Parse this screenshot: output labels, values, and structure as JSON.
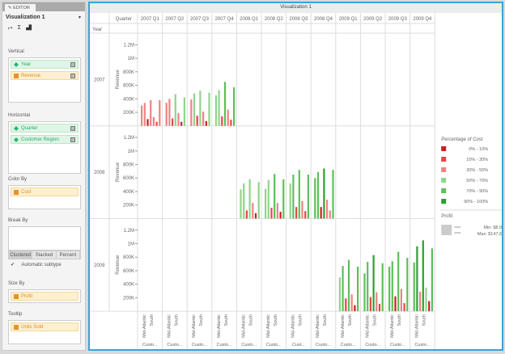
{
  "editor": {
    "tab": "EDITOR",
    "viz_name": "Visualization 1",
    "vertical_label": "Vertical",
    "vertical": [
      "Year",
      "Revenue"
    ],
    "horizontal_label": "Horizontal",
    "horizontal": [
      "Quarter",
      "Customer Region"
    ],
    "colorby_label": "Color By",
    "colorby": "Cost",
    "breakby_label": "Break By",
    "subtypes": [
      "Clustered",
      "Stacked",
      "Percent"
    ],
    "auto_subtype": "Automatic subtype",
    "sizeby_label": "Size By",
    "sizeby": "Profit",
    "tooltip_label": "Tooltip",
    "tooltip": "Units Sold"
  },
  "viz": {
    "title": "Visualization 1",
    "quarter_header": "Quarter",
    "year_header": "Year",
    "ylabel": "Revenue",
    "regions": [
      "Mid-Atlantic",
      "South"
    ],
    "region_group": [
      "Custo...",
      "Custo...",
      "Custo...",
      "Custo...",
      "Custo...",
      "Custo...",
      "Cust...",
      "Custo...",
      "Custo...",
      "Custo...",
      "Custo...",
      "Custo..."
    ]
  },
  "legend": {
    "title": "Percentage of Cost",
    "items": [
      "0% - 10%",
      "10% - 30%",
      "30% - 50%",
      "50% - 70%",
      "70% - 90%",
      "90% - 100%"
    ],
    "colors": [
      "#c8201e",
      "#e84545",
      "#f08282",
      "#8fd68a",
      "#5cbf5a",
      "#2e9e2e"
    ],
    "size_title": "Profit",
    "min": "Min: $8,937",
    "max": "Max: $147,679"
  },
  "chart_data": {
    "type": "bar",
    "ylabel": "Revenue",
    "ylim": [
      0,
      1300000
    ],
    "yticks": [
      "200K",
      "400K",
      "600K",
      "800K",
      "1M",
      "1.2M"
    ],
    "columns": [
      "2007 Q1",
      "2007 Q2",
      "2007 Q3",
      "2007 Q4",
      "2008 Q1",
      "2008 Q2",
      "2008 Q3",
      "2008 Q4",
      "2009 Q1",
      "2009 Q2",
      "2009 Q3",
      "2009 Q4"
    ],
    "rows": [
      "2007",
      "2008",
      "2009"
    ],
    "bars_k": {
      "2007 Q1": [
        [
          300,
          2
        ],
        [
          340,
          2
        ],
        [
          100,
          0
        ],
        [
          380,
          2
        ],
        [
          130,
          2
        ],
        [
          60,
          1
        ],
        [
          380,
          2
        ]
      ],
      "2007 Q2": [
        [
          340,
          2
        ],
        [
          400,
          2
        ],
        [
          110,
          1
        ],
        [
          470,
          3
        ],
        [
          190,
          2
        ],
        [
          60,
          0
        ],
        [
          420,
          3
        ]
      ],
      "2007 Q3": [
        [
          390,
          2
        ],
        [
          480,
          3
        ],
        [
          150,
          1
        ],
        [
          520,
          3
        ],
        [
          210,
          2
        ],
        [
          70,
          0
        ],
        [
          490,
          3
        ]
      ],
      "2007 Q4": [
        [
          450,
          3
        ],
        [
          530,
          3
        ],
        [
          140,
          1
        ],
        [
          650,
          4
        ],
        [
          240,
          2
        ],
        [
          90,
          1
        ],
        [
          570,
          4
        ]
      ],
      "2008 Q1": [
        [
          430,
          3
        ],
        [
          520,
          3
        ],
        [
          120,
          1
        ],
        [
          580,
          3
        ],
        [
          230,
          2
        ],
        [
          80,
          0
        ],
        [
          540,
          3
        ]
      ],
      "2008 Q2": [
        [
          440,
          3
        ],
        [
          570,
          3
        ],
        [
          160,
          1
        ],
        [
          660,
          4
        ],
        [
          230,
          2
        ],
        [
          100,
          0
        ],
        [
          580,
          4
        ]
      ],
      "2008 Q3": [
        [
          520,
          3
        ],
        [
          650,
          4
        ],
        [
          170,
          1
        ],
        [
          720,
          4
        ],
        [
          260,
          2
        ],
        [
          110,
          1
        ],
        [
          650,
          4
        ]
      ],
      "2008 Q4": [
        [
          600,
          4
        ],
        [
          690,
          4
        ],
        [
          170,
          0
        ],
        [
          740,
          5
        ],
        [
          280,
          2
        ],
        [
          120,
          2
        ],
        [
          720,
          4
        ]
      ],
      "2009 Q1": [
        [
          500,
          3
        ],
        [
          670,
          4
        ],
        [
          190,
          1
        ],
        [
          760,
          4
        ],
        [
          250,
          2
        ],
        [
          90,
          0
        ],
        [
          660,
          4
        ]
      ],
      "2009 Q2": [
        [
          560,
          4
        ],
        [
          730,
          4
        ],
        [
          210,
          1
        ],
        [
          830,
          5
        ],
        [
          280,
          2
        ],
        [
          110,
          1
        ],
        [
          710,
          4
        ]
      ],
      "2009 Q3": [
        [
          660,
          4
        ],
        [
          740,
          4
        ],
        [
          220,
          0
        ],
        [
          880,
          4
        ],
        [
          330,
          2
        ],
        [
          120,
          1
        ],
        [
          790,
          4
        ]
      ],
      "2009 Q4": [
        [
          720,
          4
        ],
        [
          960,
          5
        ],
        [
          290,
          2
        ],
        [
          1050,
          5
        ],
        [
          350,
          3
        ],
        [
          150,
          0
        ],
        [
          930,
          4
        ]
      ]
    }
  }
}
